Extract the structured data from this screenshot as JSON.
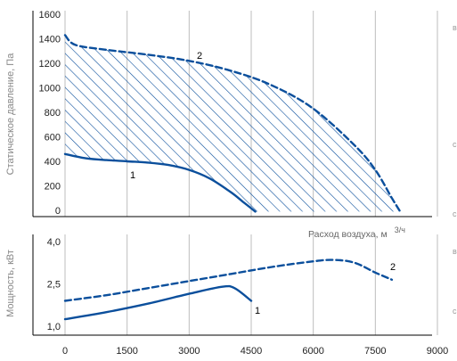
{
  "chart_data": [
    {
      "type": "line",
      "title": "",
      "ylabel": "Статическое давление, Па",
      "xlabel": "Расход воздуха, м³/ч",
      "xlabel_main": "Расход воздуха, м",
      "xlabel_unit": "3/ч",
      "xlim": [
        0,
        9000
      ],
      "ylim": [
        -50,
        1600
      ],
      "yticks": [
        0,
        200,
        400,
        600,
        800,
        1000,
        1200,
        1400,
        1600
      ],
      "ytick_labels": [
        "0",
        "200",
        "400",
        "600",
        "800",
        "1000",
        "1200",
        "1400",
        "1600"
      ],
      "grid": true,
      "hatched_region_between": [
        "1",
        "2"
      ],
      "series": [
        {
          "name": "1",
          "style": "solid",
          "color": "#0b4f9c",
          "x": [
            0,
            500,
            1000,
            1500,
            2000,
            2500,
            3000,
            3500,
            4000,
            4300,
            4600
          ],
          "y": [
            460,
            425,
            410,
            400,
            390,
            370,
            330,
            260,
            150,
            70,
            -10
          ]
        },
        {
          "name": "2",
          "style": "dashed",
          "color": "#0b4f9c",
          "x": [
            0,
            250,
            1000,
            2000,
            3000,
            4000,
            5000,
            6000,
            7000,
            7500,
            7900,
            8100
          ],
          "y": [
            1430,
            1350,
            1310,
            1270,
            1220,
            1140,
            1020,
            830,
            530,
            330,
            100,
            -10
          ]
        }
      ]
    },
    {
      "type": "line",
      "title": "",
      "ylabel": "Мощность, кВт",
      "xlim": [
        0,
        9000
      ],
      "ylim": [
        0.8,
        4.0
      ],
      "yticks": [
        1.0,
        2.5,
        4.0
      ],
      "ytick_labels": [
        "1,0",
        "2,5",
        "4,0"
      ],
      "xticks": [
        0,
        1500,
        3000,
        4500,
        6000,
        7500,
        9000
      ],
      "xtick_labels": [
        "0",
        "1500",
        "3000",
        "4500",
        "6000",
        "7500",
        "9000"
      ],
      "grid": true,
      "series": [
        {
          "name": "1",
          "style": "solid",
          "color": "#0b4f9c",
          "x": [
            0,
            1000,
            2000,
            3000,
            3800,
            4100,
            4500
          ],
          "y": [
            1.25,
            1.5,
            1.8,
            2.15,
            2.4,
            2.35,
            1.9
          ]
        },
        {
          "name": "2",
          "style": "dashed",
          "color": "#0b4f9c",
          "x": [
            0,
            1000,
            2000,
            3000,
            4000,
            5000,
            6000,
            6500,
            7000,
            7500,
            7900
          ],
          "y": [
            1.9,
            2.1,
            2.35,
            2.6,
            2.85,
            3.1,
            3.3,
            3.35,
            3.25,
            2.9,
            2.65
          ]
        }
      ]
    }
  ],
  "edge_marks": [
    "в",
    "с",
    "с",
    "в",
    "с"
  ]
}
